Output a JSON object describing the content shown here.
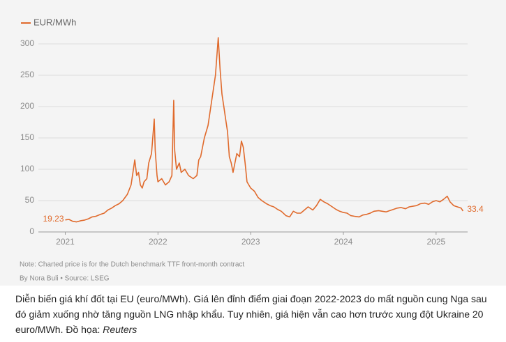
{
  "chart_data": {
    "type": "line",
    "note": "Note: Charted price is for the Dutch benchmark TTF front-month contract",
    "byline": "By Nora Buli • Source: LSEG",
    "xlim": [
      2020.71,
      2025.34
    ],
    "xticks": [
      2021,
      2022,
      2023,
      2024,
      2025
    ],
    "ylim": [
      0,
      300
    ],
    "yticks": [
      0,
      50,
      100,
      150,
      200,
      250,
      300
    ],
    "grid": true,
    "x": [
      2021.0,
      2021.04,
      2021.08,
      2021.12,
      2021.17,
      2021.21,
      2021.25,
      2021.29,
      2021.33,
      2021.38,
      2021.42,
      2021.46,
      2021.5,
      2021.54,
      2021.58,
      2021.62,
      2021.67,
      2021.71,
      2021.73,
      2021.75,
      2021.77,
      2021.79,
      2021.81,
      2021.83,
      2021.85,
      2021.88,
      2021.9,
      2021.93,
      2021.96,
      2021.97,
      2021.99,
      2022.0,
      2022.04,
      2022.08,
      2022.12,
      2022.15,
      2022.17,
      2022.18,
      2022.2,
      2022.23,
      2022.25,
      2022.29,
      2022.33,
      2022.38,
      2022.42,
      2022.44,
      2022.46,
      2022.5,
      2022.54,
      2022.58,
      2022.62,
      2022.65,
      2022.67,
      2022.69,
      2022.71,
      2022.73,
      2022.75,
      2022.77,
      2022.79,
      2022.81,
      2022.83,
      2022.85,
      2022.88,
      2022.9,
      2022.92,
      2022.94,
      2022.96,
      2022.98,
      2023.0,
      2023.04,
      2023.08,
      2023.12,
      2023.17,
      2023.21,
      2023.25,
      2023.29,
      2023.33,
      2023.38,
      2023.42,
      2023.46,
      2023.5,
      2023.54,
      2023.58,
      2023.62,
      2023.67,
      2023.71,
      2023.75,
      2023.79,
      2023.83,
      2023.88,
      2023.92,
      2023.96,
      2024.0,
      2024.04,
      2024.08,
      2024.12,
      2024.17,
      2024.21,
      2024.25,
      2024.29,
      2024.33,
      2024.38,
      2024.42,
      2024.46,
      2024.5,
      2024.54,
      2024.58,
      2024.62,
      2024.67,
      2024.71,
      2024.75,
      2024.79,
      2024.83,
      2024.88,
      2024.92,
      2024.96,
      2025.0,
      2025.04,
      2025.08,
      2025.12,
      2025.15,
      2025.19,
      2025.23,
      2025.27,
      2025.29
    ],
    "series": [
      {
        "name": "EUR/MWh",
        "color": "#e06a2c",
        "values": [
          19.23,
          20,
          17,
          16,
          18,
          19,
          21,
          24,
          25,
          28,
          30,
          35,
          38,
          42,
          45,
          50,
          60,
          75,
          95,
          115,
          90,
          95,
          75,
          70,
          80,
          85,
          110,
          125,
          180,
          130,
          90,
          80,
          85,
          75,
          80,
          90,
          210,
          130,
          100,
          110,
          95,
          100,
          90,
          85,
          90,
          115,
          120,
          150,
          170,
          210,
          250,
          310,
          260,
          220,
          200,
          180,
          160,
          120,
          110,
          95,
          110,
          125,
          120,
          145,
          135,
          110,
          80,
          75,
          70,
          65,
          55,
          50,
          45,
          42,
          40,
          36,
          33,
          26,
          24,
          33,
          30,
          30,
          35,
          40,
          35,
          42,
          52,
          48,
          45,
          40,
          36,
          33,
          31,
          30,
          26,
          25,
          24,
          27,
          28,
          30,
          33,
          34,
          33,
          32,
          34,
          36,
          38,
          39,
          37,
          40,
          41,
          42,
          45,
          46,
          44,
          48,
          50,
          48,
          52,
          57,
          48,
          42,
          40,
          38,
          33.4
        ]
      }
    ]
  },
  "caption": {
    "text": "Diễn biến giá khí đốt tại EU (euro/MWh). Giá lên đỉnh điểm giai đoạn 2022-2023 do mất nguồn cung Nga sau đó giảm xuống nhờ tăng nguồn LNG nhập khẩu. Tuy nhiên, giá hiện vẫn cao hơn trước xung đột Ukraine 20 euro/MWh. Đồ họa: ",
    "source": "Reuters"
  }
}
